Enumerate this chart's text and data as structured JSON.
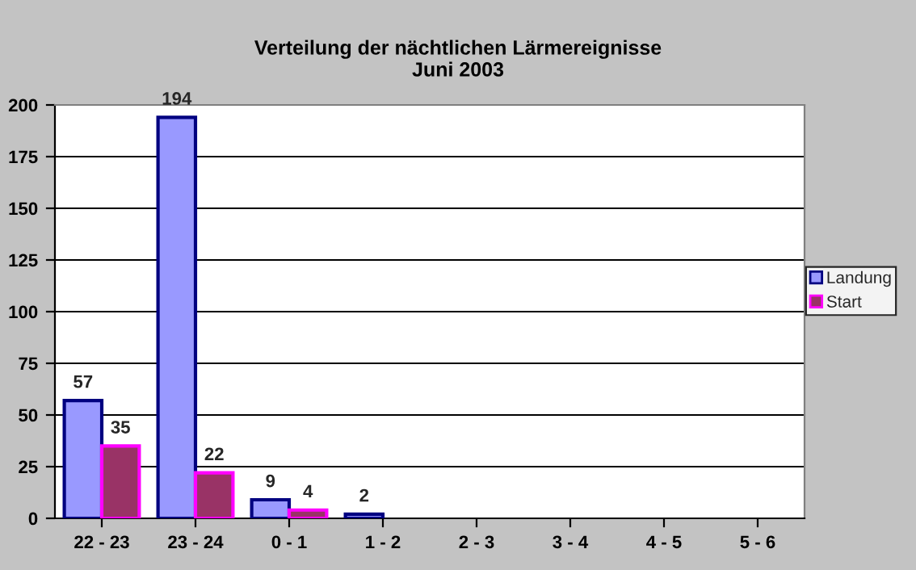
{
  "chart_data": {
    "type": "bar",
    "title": "Verteilung der nächtlichen Lärmereignisse\nJuni 2003",
    "categories": [
      "22 - 23",
      "23 - 24",
      "0 - 1",
      "1 - 2",
      "2 - 3",
      "3 - 4",
      "4 - 5",
      "5 - 6"
    ],
    "series": [
      {
        "name": "Landung",
        "color": "#9999ff",
        "values": [
          57,
          194,
          9,
          2,
          0,
          0,
          0,
          0
        ],
        "value_labels": [
          "57",
          "194",
          "9",
          "2",
          null,
          null,
          null,
          null
        ]
      },
      {
        "name": "Start",
        "color": "#993366",
        "values": [
          35,
          22,
          4,
          0,
          0,
          0,
          0,
          0
        ],
        "value_labels": [
          "35",
          "22",
          "4",
          null,
          null,
          null,
          null,
          null
        ]
      }
    ],
    "ylim": [
      0,
      200
    ],
    "yticks": [
      0,
      25,
      50,
      75,
      100,
      125,
      150,
      175,
      200
    ],
    "grid": "y",
    "legend": "right"
  }
}
